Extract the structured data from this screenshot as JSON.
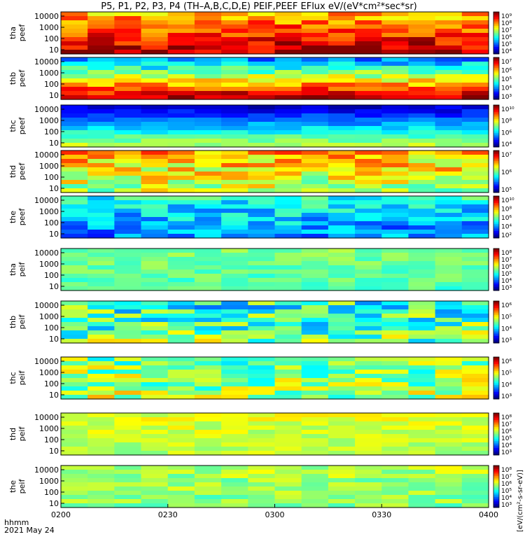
{
  "title": "P5, P1, P2, P3, P4 (TH–A,B,C,D,E) PEIF,PEEF EFlux eV/(eV*cm²*sec*sr)",
  "footer": {
    "time_label": "hhmm",
    "date_label": "2021 May 24"
  },
  "colorbar_units": "[eV/(cm²-s-sr-eV)]",
  "chart_data": {
    "type": "heatmap",
    "title": "P5, P1, P2, P3, P4 (TH–A,B,C,D,E) PEIF,PEEF EFlux eV/(eV*cm²*sec*sr)",
    "x_axis": {
      "label": "hhmm",
      "date": "2021 May 24",
      "range": [
        "0200",
        "0400"
      ],
      "ticks": [
        "0200",
        "0230",
        "0300",
        "0330",
        "0400"
      ]
    },
    "y_axis": {
      "scale": "log",
      "units": "eV",
      "ticks": [
        "10",
        "100",
        "1000",
        "10000"
      ]
    },
    "panels": [
      {
        "ylabel": [
          "tha",
          "peef"
        ],
        "cb_ticks": [
          "10⁹",
          "10⁸",
          "10⁷",
          "10⁶",
          "10⁵",
          "10⁴"
        ]
      },
      {
        "ylabel": [
          "thb",
          "peef"
        ],
        "cb_ticks": [
          "10⁷",
          "10⁶",
          "10⁵",
          "10⁴",
          "10³"
        ]
      },
      {
        "ylabel": [
          "thc",
          "peef"
        ],
        "cb_ticks": [
          "10¹⁰",
          "10⁸",
          "10⁶",
          "10⁴"
        ]
      },
      {
        "ylabel": [
          "thd",
          "peef"
        ],
        "cb_ticks": [
          "10⁷",
          "10⁶",
          "10⁵"
        ]
      },
      {
        "ylabel": [
          "the",
          "peef"
        ],
        "cb_ticks": [
          "10¹⁰",
          "10⁸",
          "10⁶",
          "10⁴",
          "10²"
        ]
      },
      {
        "ylabel": [
          "tha",
          "peif"
        ],
        "cb_ticks": [
          "10⁸",
          "10⁷",
          "10⁶",
          "10⁵",
          "10⁴",
          "10³"
        ]
      },
      {
        "ylabel": [
          "thb",
          "peif"
        ],
        "cb_ticks": [
          "10⁶",
          "10⁵",
          "10⁴",
          "10³"
        ]
      },
      {
        "ylabel": [
          "thc",
          "peif"
        ],
        "cb_ticks": [
          "10⁶",
          "10⁵",
          "10⁴",
          "10³"
        ]
      },
      {
        "ylabel": [
          "thd",
          "peif"
        ],
        "cb_ticks": [
          "10⁸",
          "10⁷",
          "10⁶",
          "10⁵",
          "10⁴",
          "10³"
        ]
      },
      {
        "ylabel": [
          "the",
          "peif"
        ],
        "cb_ticks": [
          "10⁸",
          "10⁷",
          "10⁶",
          "10⁵",
          "10⁴",
          "10³"
        ]
      }
    ]
  }
}
